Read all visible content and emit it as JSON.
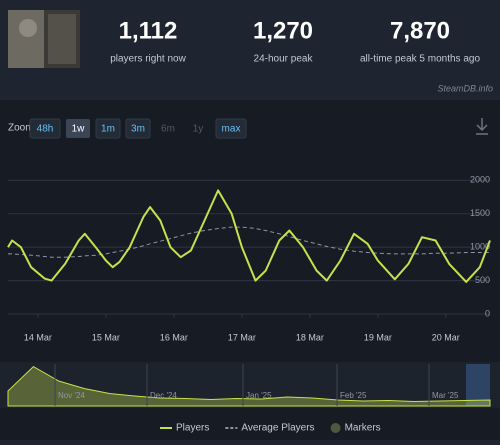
{
  "header": {
    "stats": [
      {
        "value": "1,112",
        "label": "players right now"
      },
      {
        "value": "1,270",
        "label": "24-hour peak"
      },
      {
        "value": "7,870",
        "label": "all-time peak 5 months ago"
      }
    ],
    "source": "SteamDB.info"
  },
  "zoom": {
    "label": "Zoom",
    "buttons": [
      {
        "text": "48h",
        "enabled": true,
        "active": false
      },
      {
        "text": "1w",
        "enabled": true,
        "active": true
      },
      {
        "text": "1m",
        "enabled": true,
        "active": false
      },
      {
        "text": "3m",
        "enabled": true,
        "active": false
      },
      {
        "text": "6m",
        "enabled": false,
        "active": false
      },
      {
        "text": "1y",
        "enabled": false,
        "active": false
      },
      {
        "text": "max",
        "enabled": true,
        "active": false
      }
    ]
  },
  "chart_data": [
    {
      "type": "line",
      "x": [
        13.56,
        13.62,
        13.75,
        13.9,
        14.1,
        14.2,
        14.4,
        14.6,
        14.69,
        14.85,
        15.0,
        15.1,
        15.2,
        15.35,
        15.55,
        15.65,
        15.8,
        15.95,
        16.1,
        16.25,
        16.45,
        16.65,
        16.85,
        17.0,
        17.2,
        17.35,
        17.55,
        17.7,
        17.9,
        18.1,
        18.25,
        18.45,
        18.65,
        18.85,
        19.0,
        19.25,
        19.45,
        19.65,
        19.85,
        20.05,
        20.3,
        20.5,
        20.65
      ],
      "series": [
        {
          "name": "Players",
          "color": "#c9e04c",
          "dashed": false,
          "values": [
            1000,
            1100,
            1000,
            700,
            530,
            500,
            750,
            1100,
            1200,
            1000,
            800,
            700,
            780,
            1000,
            1450,
            1600,
            1400,
            1000,
            850,
            950,
            1400,
            1850,
            1500,
            1000,
            500,
            650,
            1100,
            1250,
            1000,
            650,
            500,
            800,
            1200,
            1050,
            800,
            520,
            750,
            1150,
            1100,
            750,
            480,
            700,
            1100
          ]
        },
        {
          "name": "Average Players",
          "color": "#8b97a8",
          "dashed": true,
          "values": [
            900,
            900,
            890,
            880,
            860,
            850,
            850,
            860,
            870,
            880,
            900,
            920,
            940,
            970,
            1020,
            1050,
            1090,
            1130,
            1170,
            1210,
            1250,
            1280,
            1300,
            1300,
            1280,
            1250,
            1200,
            1160,
            1100,
            1050,
            1010,
            970,
            940,
            920,
            910,
            900,
            900,
            900,
            910,
            910,
            920,
            920,
            920
          ]
        }
      ],
      "markers_label": "Markers",
      "markers_color": "#4a5a3a",
      "xlim": [
        13.56,
        20.65
      ],
      "xticks": [
        {
          "value": 14,
          "label": "14 Mar"
        },
        {
          "value": 15,
          "label": "15 Mar"
        },
        {
          "value": 16,
          "label": "16 Mar"
        },
        {
          "value": 17,
          "label": "17 Mar"
        },
        {
          "value": 18,
          "label": "18 Mar"
        },
        {
          "value": 19,
          "label": "19 Mar"
        },
        {
          "value": 20,
          "label": "20 Mar"
        }
      ],
      "ylim": [
        0,
        2200
      ],
      "yticks": [
        0,
        500,
        1000,
        1500,
        2000
      ],
      "grid": true
    },
    {
      "type": "area",
      "color": "#c9e04c",
      "values": [
        3000,
        7870,
        5000,
        3500,
        2500,
        2000,
        1600,
        1500,
        1300,
        1500,
        1400,
        1800,
        1600,
        1200,
        1000,
        1100,
        900,
        1000,
        1100,
        1200
      ],
      "ylim": [
        0,
        8000
      ],
      "tick_labels": [
        "Nov '24",
        "Dec '24",
        "Jan '25",
        "Feb '25",
        "Mar '25"
      ]
    }
  ]
}
